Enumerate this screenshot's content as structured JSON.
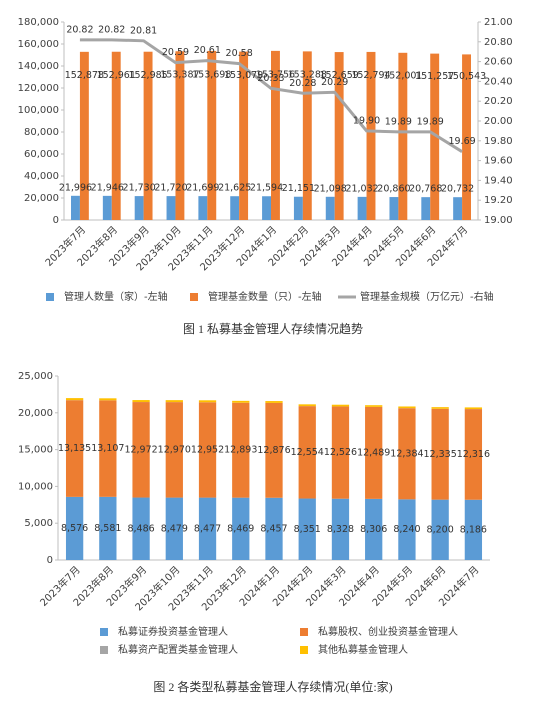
{
  "chart_data": [
    {
      "type": "bar",
      "caption": "图 1 私募基金管理人存续情况趋势",
      "categories": [
        "2023年7月",
        "2023年8月",
        "2023年9月",
        "2023年10月",
        "2023年11月",
        "2023年12月",
        "2024年1月",
        "2024年2月",
        "2024年3月",
        "2024年4月",
        "2024年5月",
        "2024年6月",
        "2024年7月"
      ],
      "series": [
        {
          "name": "管理人数量（家）-左轴",
          "type": "bar",
          "color": "#5b9bd5",
          "values": [
            21996,
            21946,
            21730,
            21720,
            21699,
            21625,
            21594,
            21151,
            21098,
            21032,
            20860,
            20768,
            20732
          ],
          "value_labels": [
            "21,996",
            "21,946",
            "21,730",
            "21,720",
            "21,699",
            "21,625",
            "21,594",
            "21,151",
            "21,098",
            "21,032",
            "20,860",
            "20,768",
            "20,732"
          ]
        },
        {
          "name": "管理基金数量（只）-左轴",
          "type": "bar",
          "color": "#ed7d31",
          "values": [
            152878,
            152961,
            152985,
            153387,
            153698,
            153079,
            153756,
            153288,
            152659,
            152794,
            152001,
            151257,
            150543
          ],
          "value_labels": [
            "152,878",
            "152,961",
            "152,985",
            "153,387",
            "153,698",
            "153,079",
            "153,756",
            "153,288",
            "152,659",
            "152,794",
            "152,001",
            "151,257",
            "150,543"
          ]
        },
        {
          "name": "管理基金规模（万亿元）-右轴",
          "type": "line",
          "axis": "y2",
          "color": "#a5a5a5",
          "values": [
            20.82,
            20.82,
            20.81,
            20.59,
            20.61,
            20.58,
            20.33,
            20.28,
            20.29,
            19.9,
            19.89,
            19.89,
            19.69
          ],
          "value_labels": [
            "20.82",
            "20.82",
            "20.81",
            "20.59",
            "20.61",
            "20.58",
            "20.33",
            "20.28",
            "20.29",
            "19.90",
            "19.89",
            "19.89",
            "19.69"
          ]
        }
      ],
      "ylim": [
        0,
        180000
      ],
      "yticks": [
        0,
        {
          "value": 20000,
          "label": "20,000"
        },
        {
          "value": 40000,
          "label": "40,000"
        },
        {
          "value": 60000,
          "label": "60,000"
        },
        {
          "value": 80000,
          "label": "80,000"
        },
        {
          "value": 100000,
          "label": "100,000"
        },
        {
          "value": 120000,
          "label": "120,000"
        },
        {
          "value": 140000,
          "label": "140,000"
        },
        {
          "value": 160000,
          "label": "160,000"
        },
        {
          "value": 180000,
          "label": "180,000"
        }
      ],
      "y2lim": [
        19,
        21
      ],
      "y2ticks": [
        {
          "value": 19,
          "label": "19.00"
        },
        {
          "value": 19.2,
          "label": "19.20"
        },
        {
          "value": 19.4,
          "label": "19.40"
        },
        {
          "value": 19.6,
          "label": "19.60"
        },
        {
          "value": 19.8,
          "label": "19.80"
        },
        {
          "value": 20,
          "label": "20.00"
        },
        {
          "value": 20.2,
          "label": "20.20"
        },
        {
          "value": 20.4,
          "label": "20.40"
        },
        {
          "value": 20.6,
          "label": "20.60"
        },
        {
          "value": 20.8,
          "label": "20.80"
        },
        {
          "value": 21,
          "label": "21.00"
        }
      ],
      "stacked": false
    },
    {
      "type": "bar",
      "caption": "图 2 各类型私募基金管理人存续情况(单位:家)",
      "categories": [
        "2023年7月",
        "2023年8月",
        "2023年9月",
        "2023年10月",
        "2023年11月",
        "2023年12月",
        "2024年1月",
        "2024年2月",
        "2024年3月",
        "2024年4月",
        "2024年5月",
        "2024年6月",
        "2024年7月"
      ],
      "series": [
        {
          "name": "私募证券投资基金管理人",
          "color": "#5b9bd5",
          "values": [
            8576,
            8581,
            8486,
            8479,
            8477,
            8469,
            8457,
            8351,
            8328,
            8306,
            8240,
            8200,
            8186
          ],
          "value_labels": [
            "8,576",
            "8,581",
            "8,486",
            "8,479",
            "8,477",
            "8,469",
            "8,457",
            "8,351",
            "8,328",
            "8,306",
            "8,240",
            "8,200",
            "8,186"
          ]
        },
        {
          "name": "私募股权、创业投资基金管理人",
          "color": "#ed7d31",
          "values": [
            13135,
            13107,
            12972,
            12970,
            12952,
            12893,
            12876,
            12554,
            12526,
            12489,
            12384,
            12335,
            12316
          ],
          "value_labels": [
            "13,135",
            "13,107",
            "12,972",
            "12,970",
            "12,952",
            "12,893",
            "12,876",
            "12,554",
            "12,526",
            "12,489",
            "12,384",
            "12,335",
            "12,316"
          ]
        },
        {
          "name": "私募资产配置类基金管理人",
          "color": "#a5a5a5",
          "values": [
            9,
            9,
            9,
            9,
            9,
            9,
            9,
            9,
            9,
            9,
            9,
            9,
            9
          ]
        },
        {
          "name": "其他私募基金管理人",
          "color": "#ffc000",
          "values": [
            276,
            271,
            263,
            262,
            261,
            254,
            252,
            237,
            235,
            228,
            227,
            225,
            222
          ]
        }
      ],
      "ylim": [
        0,
        25000
      ],
      "yticks": [
        0,
        {
          "value": 5000,
          "label": "5,000"
        },
        {
          "value": 10000,
          "label": "10,000"
        },
        {
          "value": 15000,
          "label": "15,000"
        },
        {
          "value": 20000,
          "label": "20,000"
        },
        {
          "value": 25000,
          "label": "25,000"
        }
      ],
      "stacked": true
    }
  ]
}
